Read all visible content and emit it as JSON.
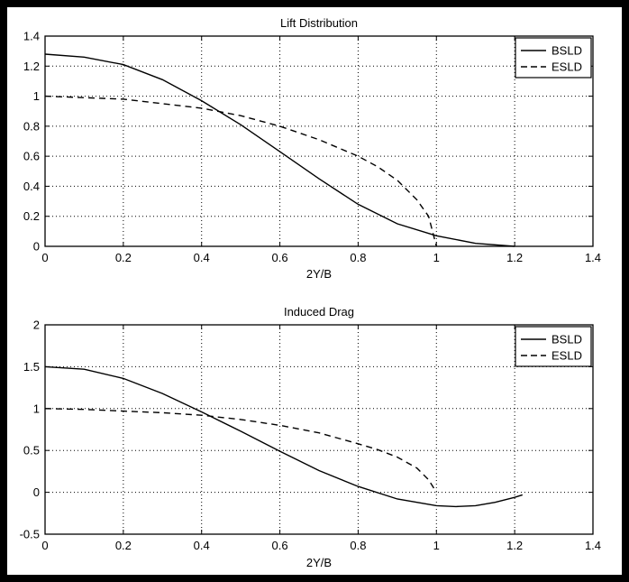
{
  "chart_data": [
    {
      "type": "line",
      "title": "Lift Distribution",
      "xlabel": "2Y/B",
      "ylabel": "",
      "xlim": [
        0,
        1.4
      ],
      "ylim": [
        0,
        1.4
      ],
      "xticks": [
        "0",
        "0.2",
        "0.4",
        "0.6",
        "0.8",
        "1",
        "1.2",
        "1.4"
      ],
      "yticks": [
        "0",
        "0.2",
        "0.4",
        "0.6",
        "0.8",
        "1",
        "1.2",
        "1.4"
      ],
      "grid": true,
      "legend_position": "top-right",
      "series": [
        {
          "name": "BSLD",
          "style": "solid",
          "x": [
            0,
            0.1,
            0.2,
            0.3,
            0.4,
            0.5,
            0.6,
            0.7,
            0.8,
            0.9,
            1.0,
            1.1,
            1.2
          ],
          "y": [
            1.28,
            1.26,
            1.21,
            1.11,
            0.97,
            0.81,
            0.63,
            0.45,
            0.28,
            0.15,
            0.07,
            0.02,
            0.0
          ]
        },
        {
          "name": "ESLD",
          "style": "dashed",
          "x": [
            0,
            0.1,
            0.2,
            0.3,
            0.4,
            0.5,
            0.6,
            0.7,
            0.8,
            0.85,
            0.9,
            0.95,
            0.98,
            1.0
          ],
          "y": [
            1.0,
            0.99,
            0.98,
            0.95,
            0.92,
            0.87,
            0.8,
            0.71,
            0.6,
            0.53,
            0.44,
            0.31,
            0.2,
            0.0
          ]
        }
      ]
    },
    {
      "type": "line",
      "title": "Induced Drag",
      "xlabel": "2Y/B",
      "ylabel": "",
      "xlim": [
        0,
        1.4
      ],
      "ylim": [
        -0.5,
        2
      ],
      "xticks": [
        "0",
        "0.2",
        "0.4",
        "0.6",
        "0.8",
        "1",
        "1.2",
        "1.4"
      ],
      "yticks": [
        "-0.5",
        "0",
        "0.5",
        "1",
        "1.5",
        "2"
      ],
      "grid": true,
      "legend_position": "top-right",
      "series": [
        {
          "name": "BSLD",
          "style": "solid",
          "x": [
            0,
            0.1,
            0.2,
            0.3,
            0.4,
            0.5,
            0.6,
            0.7,
            0.8,
            0.9,
            1.0,
            1.05,
            1.1,
            1.15,
            1.2,
            1.22
          ],
          "y": [
            1.5,
            1.47,
            1.36,
            1.18,
            0.96,
            0.73,
            0.49,
            0.26,
            0.07,
            -0.08,
            -0.16,
            -0.17,
            -0.16,
            -0.12,
            -0.06,
            -0.03
          ]
        },
        {
          "name": "ESLD",
          "style": "dashed",
          "x": [
            0,
            0.1,
            0.2,
            0.3,
            0.4,
            0.5,
            0.6,
            0.7,
            0.8,
            0.85,
            0.9,
            0.95,
            0.98,
            1.0
          ],
          "y": [
            1.0,
            0.99,
            0.97,
            0.95,
            0.92,
            0.87,
            0.8,
            0.71,
            0.58,
            0.51,
            0.42,
            0.29,
            0.15,
            0.0
          ]
        }
      ]
    }
  ]
}
